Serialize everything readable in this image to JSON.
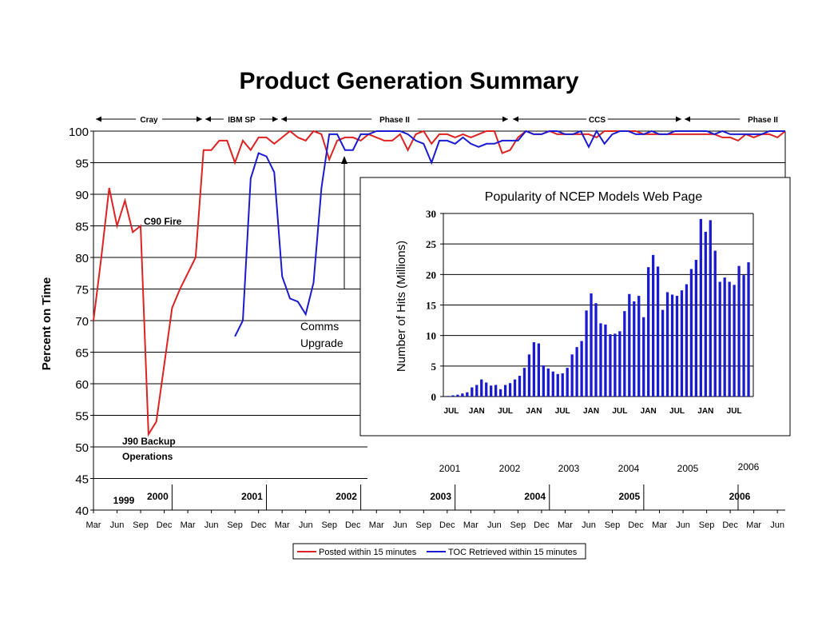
{
  "title": "Product Generation Summary",
  "colors": {
    "posted": "#dd2222",
    "toc": "#1a1ad0",
    "bars": "#1a1ad0"
  },
  "chart_data": [
    {
      "type": "line",
      "xlabel": "",
      "ylabel": "Percent on Time",
      "ylim": [
        40,
        100
      ],
      "yticks": [
        "40",
        "45",
        "50",
        "55",
        "60",
        "65",
        "70",
        "75",
        "80",
        "85",
        "90",
        "95",
        "100"
      ],
      "xticks": [
        "Mar",
        "Jun",
        "Sep",
        "Dec",
        "Mar",
        "Jun",
        "Sep",
        "Dec",
        "Mar",
        "Jun",
        "Sep",
        "Dec",
        "Mar",
        "Jun",
        "Sep",
        "Dec",
        "Mar",
        "Jun",
        "Sep",
        "Dec",
        "Mar",
        "Jun",
        "Sep",
        "Dec",
        "Mar",
        "Jun",
        "Sep",
        "Dec",
        "Mar",
        "Jun"
      ],
      "x_start": "1999-03",
      "x_end": "2006-07",
      "years": [
        "1999",
        "2000",
        "2001",
        "2002",
        "2003",
        "2004",
        "2005",
        "2006"
      ],
      "periods": [
        "Cray",
        "IBM SP",
        "Phase II",
        "CCS",
        "Phase II"
      ],
      "annotations": [
        "C90 Fire",
        "J90 Backup\nOperations",
        "Comms\nUpgrade"
      ],
      "legend_position": "bottom",
      "series": [
        {
          "name": "Posted within 15 minutes",
          "color": "#dd2222",
          "points": [
            [
              "1999-03",
              70
            ],
            [
              "1999-04",
              80
            ],
            [
              "1999-05",
              91
            ],
            [
              "1999-06",
              85
            ],
            [
              "1999-07",
              89
            ],
            [
              "1999-08",
              84
            ],
            [
              "1999-09",
              85
            ],
            [
              "1999-10",
              52
            ],
            [
              "1999-11",
              54
            ],
            [
              "1999-12",
              63
            ],
            [
              "2000-01",
              72
            ],
            [
              "2000-02",
              75
            ],
            [
              "2000-03",
              77.5
            ],
            [
              "2000-04",
              80
            ],
            [
              "2000-05",
              97
            ],
            [
              "2000-06",
              97
            ],
            [
              "2000-07",
              98.5
            ],
            [
              "2000-08",
              98.5
            ],
            [
              "2000-09",
              95
            ],
            [
              "2000-10",
              98.5
            ],
            [
              "2000-11",
              97
            ],
            [
              "2000-12",
              99
            ],
            [
              "2001-01",
              99
            ],
            [
              "2001-02",
              98
            ],
            [
              "2001-03",
              99
            ],
            [
              "2001-04",
              100
            ],
            [
              "2001-05",
              99
            ],
            [
              "2001-06",
              98.5
            ],
            [
              "2001-07",
              100
            ],
            [
              "2001-08",
              99.5
            ],
            [
              "2001-09",
              95.5
            ],
            [
              "2001-10",
              98.5
            ],
            [
              "2001-11",
              99
            ],
            [
              "2001-12",
              99
            ],
            [
              "2002-01",
              98.5
            ],
            [
              "2002-02",
              99.5
            ],
            [
              "2002-03",
              99
            ],
            [
              "2002-04",
              98.5
            ],
            [
              "2002-05",
              98.5
            ],
            [
              "2002-06",
              99.5
            ],
            [
              "2002-07",
              97
            ],
            [
              "2002-08",
              99.5
            ],
            [
              "2002-09",
              100
            ],
            [
              "2002-10",
              98
            ],
            [
              "2002-11",
              99.5
            ],
            [
              "2002-12",
              99.5
            ],
            [
              "2003-01",
              99
            ],
            [
              "2003-02",
              99.5
            ],
            [
              "2003-03",
              99
            ],
            [
              "2003-04",
              99.5
            ],
            [
              "2003-05",
              100
            ],
            [
              "2003-06",
              100
            ],
            [
              "2003-07",
              96.5
            ],
            [
              "2003-08",
              97
            ],
            [
              "2003-09",
              99
            ],
            [
              "2003-10",
              100
            ],
            [
              "2003-11",
              99.5
            ],
            [
              "2003-12",
              99.5
            ],
            [
              "2004-01",
              100
            ],
            [
              "2004-02",
              99.5
            ],
            [
              "2004-03",
              99.5
            ],
            [
              "2004-04",
              99.5
            ],
            [
              "2004-05",
              99.5
            ],
            [
              "2004-06",
              99.5
            ],
            [
              "2004-07",
              99
            ],
            [
              "2004-08",
              100
            ],
            [
              "2004-09",
              100
            ],
            [
              "2004-10",
              100
            ],
            [
              "2004-11",
              100
            ],
            [
              "2004-12",
              100
            ],
            [
              "2005-01",
              99.5
            ],
            [
              "2005-02",
              99.5
            ],
            [
              "2005-03",
              99.5
            ],
            [
              "2005-04",
              99.5
            ],
            [
              "2005-05",
              99.5
            ],
            [
              "2005-06",
              99.5
            ],
            [
              "2005-07",
              99.5
            ],
            [
              "2005-08",
              99.5
            ],
            [
              "2005-09",
              99.5
            ],
            [
              "2005-10",
              99.5
            ],
            [
              "2005-11",
              99
            ],
            [
              "2005-12",
              99
            ],
            [
              "2006-01",
              98.5
            ],
            [
              "2006-02",
              99.5
            ],
            [
              "2006-03",
              99
            ],
            [
              "2006-04",
              99.5
            ],
            [
              "2006-05",
              99.5
            ],
            [
              "2006-06",
              99
            ],
            [
              "2006-07",
              100
            ]
          ]
        },
        {
          "name": "TOC Retrieved within 15 minutes",
          "color": "#1a1ad0",
          "points": [
            [
              "2000-09",
              67.5
            ],
            [
              "2000-10",
              70
            ],
            [
              "2000-11",
              92.5
            ],
            [
              "2000-12",
              96.5
            ],
            [
              "2001-01",
              96
            ],
            [
              "2001-02",
              93.5
            ],
            [
              "2001-03",
              77
            ],
            [
              "2001-04",
              73.5
            ],
            [
              "2001-05",
              73
            ],
            [
              "2001-06",
              71
            ],
            [
              "2001-07",
              76
            ],
            [
              "2001-08",
              91
            ],
            [
              "2001-09",
              99.5
            ],
            [
              "2001-10",
              99.5
            ],
            [
              "2001-11",
              97
            ],
            [
              "2001-12",
              97
            ],
            [
              "2002-01",
              99.5
            ],
            [
              "2002-02",
              99.5
            ],
            [
              "2002-03",
              100
            ],
            [
              "2002-04",
              100
            ],
            [
              "2002-05",
              100
            ],
            [
              "2002-06",
              100
            ],
            [
              "2002-07",
              99.5
            ],
            [
              "2002-08",
              98.5
            ],
            [
              "2002-09",
              98
            ],
            [
              "2002-10",
              95
            ],
            [
              "2002-11",
              98.5
            ],
            [
              "2002-12",
              98.5
            ],
            [
              "2003-01",
              98
            ],
            [
              "2003-02",
              99
            ],
            [
              "2003-03",
              98
            ],
            [
              "2003-04",
              97.5
            ],
            [
              "2003-05",
              98
            ],
            [
              "2003-06",
              98
            ],
            [
              "2003-07",
              98.5
            ],
            [
              "2003-08",
              98.5
            ],
            [
              "2003-09",
              98.5
            ],
            [
              "2003-10",
              100
            ],
            [
              "2003-11",
              99.5
            ],
            [
              "2003-12",
              99.5
            ],
            [
              "2004-01",
              100
            ],
            [
              "2004-02",
              100
            ],
            [
              "2004-03",
              99.5
            ],
            [
              "2004-04",
              99.5
            ],
            [
              "2004-05",
              100
            ],
            [
              "2004-06",
              97.5
            ],
            [
              "2004-07",
              100
            ],
            [
              "2004-08",
              98
            ],
            [
              "2004-09",
              99.5
            ],
            [
              "2004-10",
              100
            ],
            [
              "2004-11",
              100
            ],
            [
              "2004-12",
              99.5
            ],
            [
              "2005-01",
              99.5
            ],
            [
              "2005-02",
              100
            ],
            [
              "2005-03",
              99.5
            ],
            [
              "2005-04",
              99.5
            ],
            [
              "2005-05",
              100
            ],
            [
              "2005-06",
              100
            ],
            [
              "2005-07",
              100
            ],
            [
              "2005-08",
              100
            ],
            [
              "2005-09",
              100
            ],
            [
              "2005-10",
              99.5
            ],
            [
              "2005-11",
              100
            ],
            [
              "2005-12",
              99.5
            ],
            [
              "2006-01",
              99.5
            ],
            [
              "2006-02",
              99.5
            ],
            [
              "2006-03",
              99.5
            ],
            [
              "2006-04",
              99.5
            ],
            [
              "2006-05",
              100
            ],
            [
              "2006-06",
              100
            ],
            [
              "2006-07",
              100
            ]
          ]
        }
      ]
    },
    {
      "type": "bar",
      "title": "Popularity of NCEP Models Web Page",
      "xlabel": "",
      "ylabel": "Number of Hits (Millions)",
      "ylim": [
        0,
        30
      ],
      "yticks": [
        "0",
        "5",
        "10",
        "15",
        "20",
        "25",
        "30"
      ],
      "xticks": [
        "JUL",
        "JAN",
        "JUL",
        "JAN",
        "JUL",
        "JAN",
        "JUL",
        "JAN",
        "JUL",
        "JAN",
        "JUL"
      ],
      "years": [
        "2001",
        "2002",
        "2003",
        "2004",
        "2005",
        "2006"
      ],
      "x_start": "2001-07",
      "values": [
        0.1,
        0.2,
        0.3,
        0.5,
        0.7,
        1.5,
        1.9,
        2.8,
        2.3,
        1.8,
        1.9,
        1.2,
        1.9,
        2.2,
        2.8,
        3.4,
        4.7,
        6.9,
        8.9,
        8.7,
        5.1,
        4.6,
        4.1,
        3.7,
        3.8,
        4.7,
        6.9,
        8.1,
        9.1,
        14.1,
        16.9,
        15.3,
        12.0,
        11.8,
        10.2,
        10.3,
        10.7,
        14.0,
        16.8,
        15.6,
        16.5,
        13.0,
        21.2,
        23.2,
        21.3,
        14.2,
        17.1,
        16.7,
        16.5,
        17.4,
        18.4,
        20.9,
        22.4,
        29.1,
        27.0,
        28.9,
        23.9,
        18.8,
        19.5,
        18.8,
        18.3,
        21.4,
        19.9,
        22.0
      ]
    }
  ]
}
